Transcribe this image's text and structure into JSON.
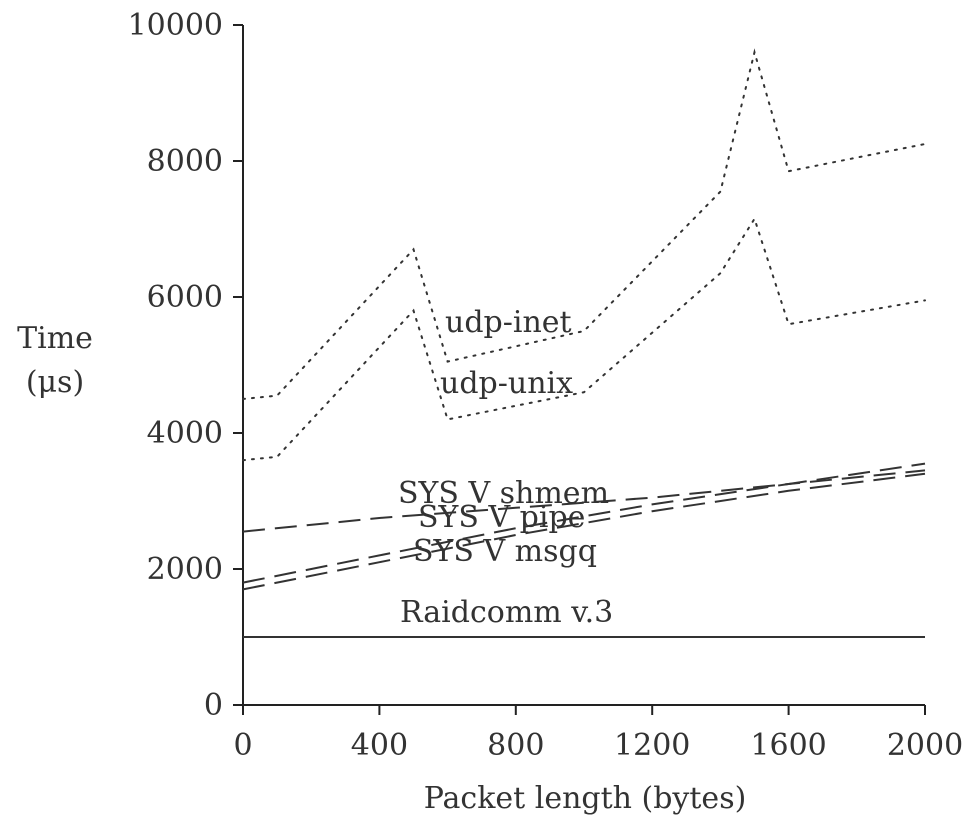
{
  "chart_data": {
    "type": "line",
    "xlabel": "Packet length (bytes)",
    "ylabel_line1": "Time",
    "ylabel_line2": "(μs)",
    "xlim": [
      0,
      2000
    ],
    "ylim": [
      0,
      10000
    ],
    "x_ticks": [
      0,
      400,
      800,
      1200,
      1600,
      2000
    ],
    "y_ticks": [
      0,
      2000,
      4000,
      6000,
      8000,
      10000
    ],
    "grid": false,
    "series": [
      {
        "name": "udp-inet",
        "style": "dotted",
        "points": [
          [
            0,
            4500
          ],
          [
            100,
            4550
          ],
          [
            500,
            6700
          ],
          [
            600,
            5050
          ],
          [
            1000,
            5500
          ],
          [
            1400,
            7550
          ],
          [
            1500,
            9600
          ],
          [
            1600,
            7850
          ],
          [
            2000,
            8250
          ]
        ]
      },
      {
        "name": "udp-unix",
        "style": "dotted",
        "points": [
          [
            0,
            3600
          ],
          [
            100,
            3650
          ],
          [
            500,
            5800
          ],
          [
            600,
            4200
          ],
          [
            1000,
            4600
          ],
          [
            1400,
            6350
          ],
          [
            1500,
            7150
          ],
          [
            1600,
            5600
          ],
          [
            2000,
            5950
          ]
        ]
      },
      {
        "name": "SYS V shmem",
        "style": "dashed",
        "points": [
          [
            0,
            2550
          ],
          [
            400,
            2750
          ],
          [
            800,
            2900
          ],
          [
            1200,
            3050
          ],
          [
            1600,
            3250
          ],
          [
            2000,
            3550
          ]
        ]
      },
      {
        "name": "SYS V pipe",
        "style": "dashed",
        "points": [
          [
            0,
            1800
          ],
          [
            400,
            2200
          ],
          [
            800,
            2600
          ],
          [
            1200,
            2950
          ],
          [
            1600,
            3250
          ],
          [
            2000,
            3450
          ]
        ]
      },
      {
        "name": "SYS V msgq",
        "style": "dashed",
        "points": [
          [
            0,
            1700
          ],
          [
            400,
            2100
          ],
          [
            800,
            2500
          ],
          [
            1200,
            2850
          ],
          [
            1600,
            3150
          ],
          [
            2000,
            3400
          ]
        ]
      },
      {
        "name": "Raidcomm v.3",
        "style": "solid",
        "points": [
          [
            0,
            1000
          ],
          [
            2000,
            1000
          ]
        ]
      }
    ]
  }
}
